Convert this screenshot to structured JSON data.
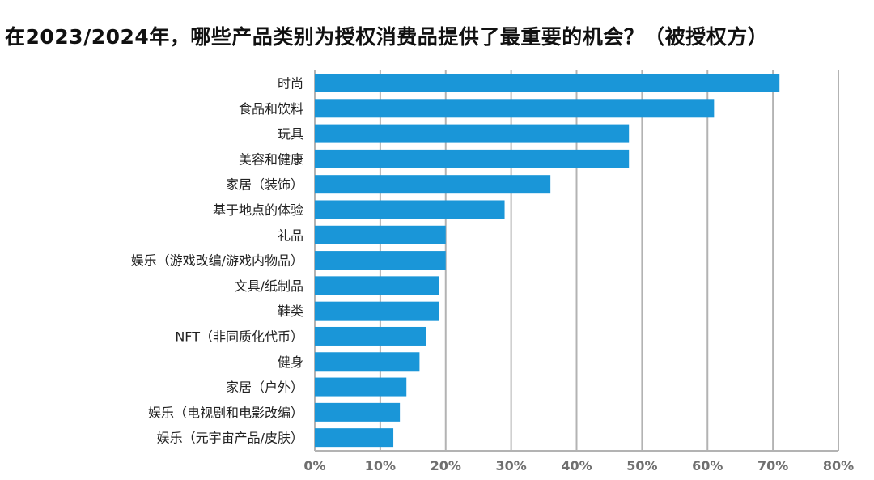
{
  "chart_data": {
    "type": "bar",
    "orientation": "horizontal",
    "title": "在2023/2024年，哪些产品类别为授权消费品提供了最重要的机会？（被授权方）",
    "categories": [
      "时尚",
      "食品和饮料",
      "玩具",
      "美容和健康",
      "家居（装饰）",
      "基于地点的体验",
      "礼品",
      "娱乐（游戏改编/游戏内物品）",
      "文具/纸制品",
      "鞋类",
      "NFT（非同质化代币）",
      "健身",
      "家居（户外）",
      "娱乐（电视剧和电影改编）",
      "娱乐（元宇宙产品/皮肤）"
    ],
    "values": [
      71,
      61,
      48,
      48,
      36,
      29,
      20,
      20,
      19,
      19,
      17,
      16,
      14,
      13,
      12
    ],
    "xlim": [
      0,
      80
    ],
    "xticks": [
      "0%",
      "10%",
      "20%",
      "30%",
      "40%",
      "50%",
      "60%",
      "70%",
      "80%"
    ],
    "grid": true,
    "bar_color": "#1a96d8",
    "grid_color": "#b3b3b3",
    "tick_color": "#6f6f6f"
  }
}
